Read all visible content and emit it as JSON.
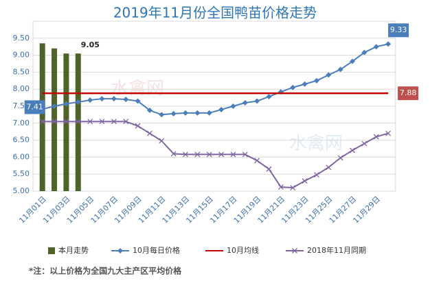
{
  "chart_data": {
    "type": "combo",
    "title": "2019年11月份全国鸭苗价格走势",
    "watermark": "水禽网",
    "footnote": "*注：以上价格为全国九大主产区平均价格",
    "categories": [
      "11月01日",
      null,
      "11月03日",
      null,
      "11月05日",
      null,
      "11月07日",
      null,
      "11月09日",
      null,
      "11月11日",
      null,
      "11月13日",
      null,
      "11月15日",
      null,
      "11月17日",
      null,
      "11月19日",
      null,
      "11月21日",
      null,
      "11月23日",
      null,
      "11月25日",
      null,
      "11月27日",
      null,
      "11月29日",
      null
    ],
    "ylim": [
      5,
      10
    ],
    "yticks": [
      {
        "value": 5,
        "label": "5.00"
      },
      {
        "value": 5.5,
        "label": "5.50"
      },
      {
        "value": 6,
        "label": "6.00"
      },
      {
        "value": 6.5,
        "label": "6.50"
      },
      {
        "value": 7,
        "label": "7.00"
      },
      {
        "value": 7.5,
        "label": "7.50"
      },
      {
        "value": 8,
        "label": "8.00"
      },
      {
        "value": 8.5,
        "label": "8.50"
      },
      {
        "value": 9,
        "label": "9.00"
      },
      {
        "value": 9.5,
        "label": "9.50"
      }
    ],
    "grid": true,
    "legend": "bottom",
    "series": [
      {
        "name": "本月走势",
        "type": "bar",
        "color": "#4f6228",
        "values": [
          9.35,
          9.2,
          9.05,
          9.05,
          null,
          null,
          null,
          null,
          null,
          null,
          null,
          null,
          null,
          null,
          null,
          null,
          null,
          null,
          null,
          null,
          null,
          null,
          null,
          null,
          null,
          null,
          null,
          null,
          null,
          null
        ],
        "value_labels": [
          null,
          null,
          null,
          "9.05",
          null,
          null,
          null,
          null,
          null,
          null,
          null,
          null,
          null,
          null,
          null,
          null,
          null,
          null,
          null,
          null,
          null,
          null,
          null,
          null,
          null,
          null,
          null,
          null,
          null,
          null
        ]
      },
      {
        "name": "10月每日价格",
        "type": "line",
        "marker": "diamond",
        "color": "#4a7ebb",
        "values": [
          7.41,
          7.5,
          7.57,
          7.62,
          7.68,
          7.72,
          7.72,
          7.7,
          7.65,
          7.38,
          7.25,
          7.28,
          7.3,
          7.3,
          7.3,
          7.4,
          7.5,
          7.6,
          7.65,
          7.78,
          7.92,
          8.05,
          8.15,
          8.25,
          8.42,
          8.58,
          8.82,
          9.08,
          9.25,
          9.33
        ],
        "value_labels": [
          "7.41",
          null,
          null,
          null,
          null,
          null,
          null,
          null,
          null,
          null,
          null,
          null,
          null,
          null,
          null,
          null,
          null,
          null,
          null,
          null,
          null,
          null,
          null,
          null,
          null,
          null,
          null,
          null,
          null,
          "9.33"
        ]
      },
      {
        "name": "10月均线",
        "type": "line",
        "marker": "none",
        "color": "#c00000",
        "values": [
          7.88,
          7.88,
          7.88,
          7.88,
          7.88,
          7.88,
          7.88,
          7.88,
          7.88,
          7.88,
          7.88,
          7.88,
          7.88,
          7.88,
          7.88,
          7.88,
          7.88,
          7.88,
          7.88,
          7.88,
          7.88,
          7.88,
          7.88,
          7.88,
          7.88,
          7.88,
          7.88,
          7.88,
          7.88,
          7.88
        ],
        "value_labels": [
          null,
          null,
          null,
          null,
          null,
          null,
          null,
          null,
          null,
          null,
          null,
          null,
          null,
          null,
          null,
          null,
          null,
          null,
          null,
          null,
          null,
          null,
          null,
          null,
          null,
          null,
          null,
          null,
          null,
          "7.88"
        ]
      },
      {
        "name": "2018年11月同期",
        "type": "line",
        "marker": "x",
        "color": "#8064a2",
        "values": [
          7.05,
          7.05,
          7.05,
          7.05,
          7.05,
          7.05,
          7.05,
          7.05,
          6.92,
          6.7,
          6.48,
          6.1,
          6.08,
          6.08,
          6.08,
          6.08,
          6.08,
          6.08,
          5.9,
          5.65,
          5.12,
          5.1,
          5.3,
          5.48,
          5.7,
          5.98,
          6.2,
          6.4,
          6.6,
          6.7
        ]
      }
    ]
  }
}
